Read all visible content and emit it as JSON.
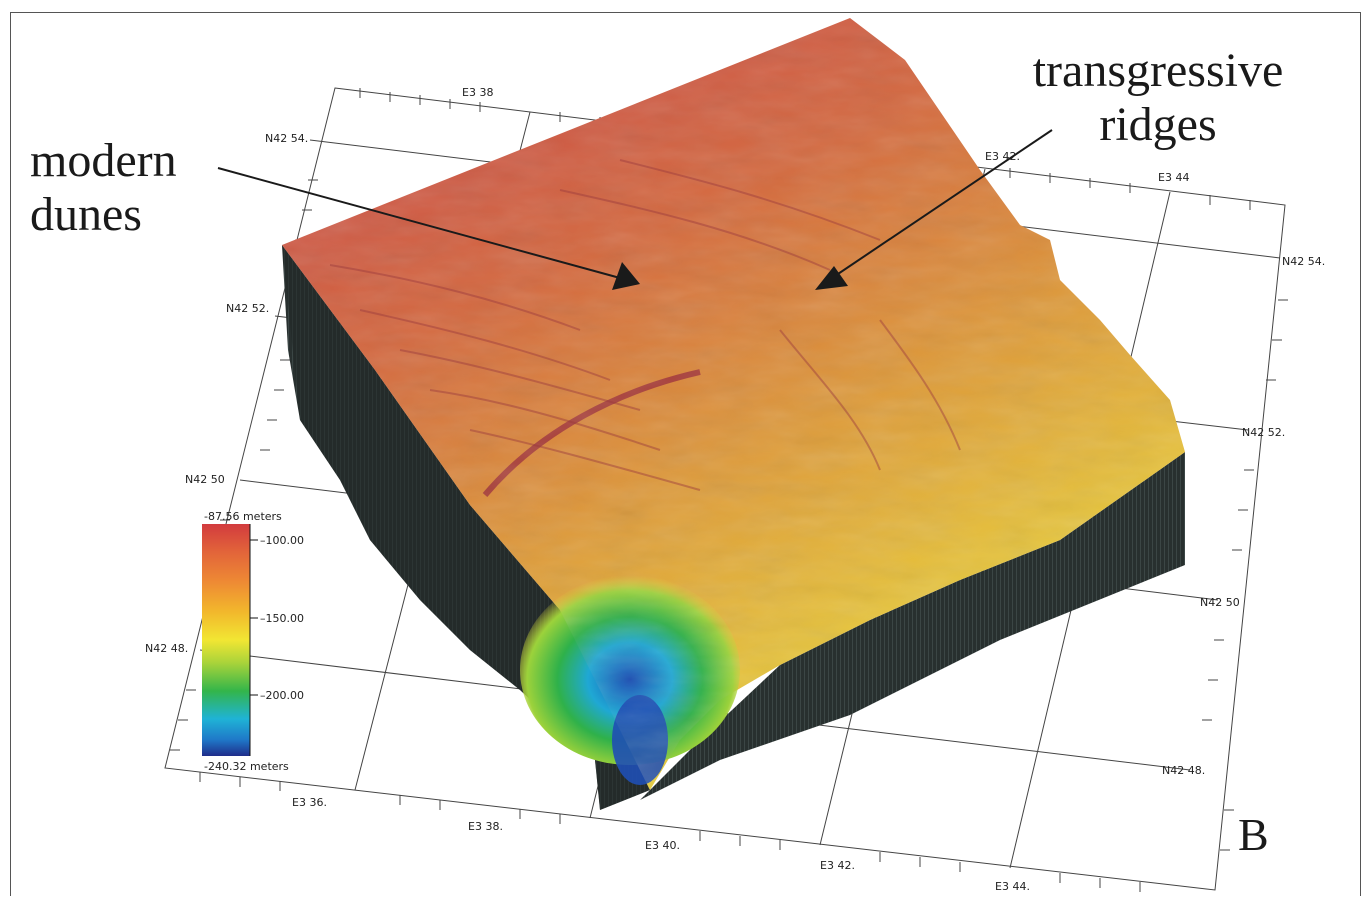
{
  "annotations": {
    "modern_line1": "modern",
    "modern_line2": "dunes",
    "transgressive_line1": "transgressive",
    "transgressive_line2": "ridges",
    "panel_letter": "B"
  },
  "axes": {
    "north_labels": [
      "N42 54.",
      "N42 52.",
      "N42 50",
      "N42 48."
    ],
    "north_labels_right": [
      "N42 54.",
      "N42 52.",
      "N42 50",
      "N42 48."
    ],
    "east_labels_top": [
      "E3 38",
      "E3 42.",
      "E3 44"
    ],
    "east_labels_bottom": [
      "E3 36.",
      "E3 38.",
      "E3 40.",
      "E3 42.",
      "E3 44."
    ]
  },
  "colorbar": {
    "top_label": "-87.56 meters",
    "bottom_label": "-240.32 meters",
    "ticks": [
      "100.00",
      "150.00",
      "200.00"
    ],
    "colors": [
      "#d23b3e",
      "#e2643a",
      "#ee8a34",
      "#f2b82c",
      "#f2e633",
      "#a8d33a",
      "#33b54a",
      "#1fb3d6",
      "#1f78c8",
      "#1f2d8a"
    ]
  },
  "surface_colors": {
    "high": "#c9474a",
    "mid": "#d9823c",
    "low": "#e8c33a",
    "deep": "#2ab04c",
    "abyss": "#1f5ec2",
    "wall": "#27302f"
  }
}
